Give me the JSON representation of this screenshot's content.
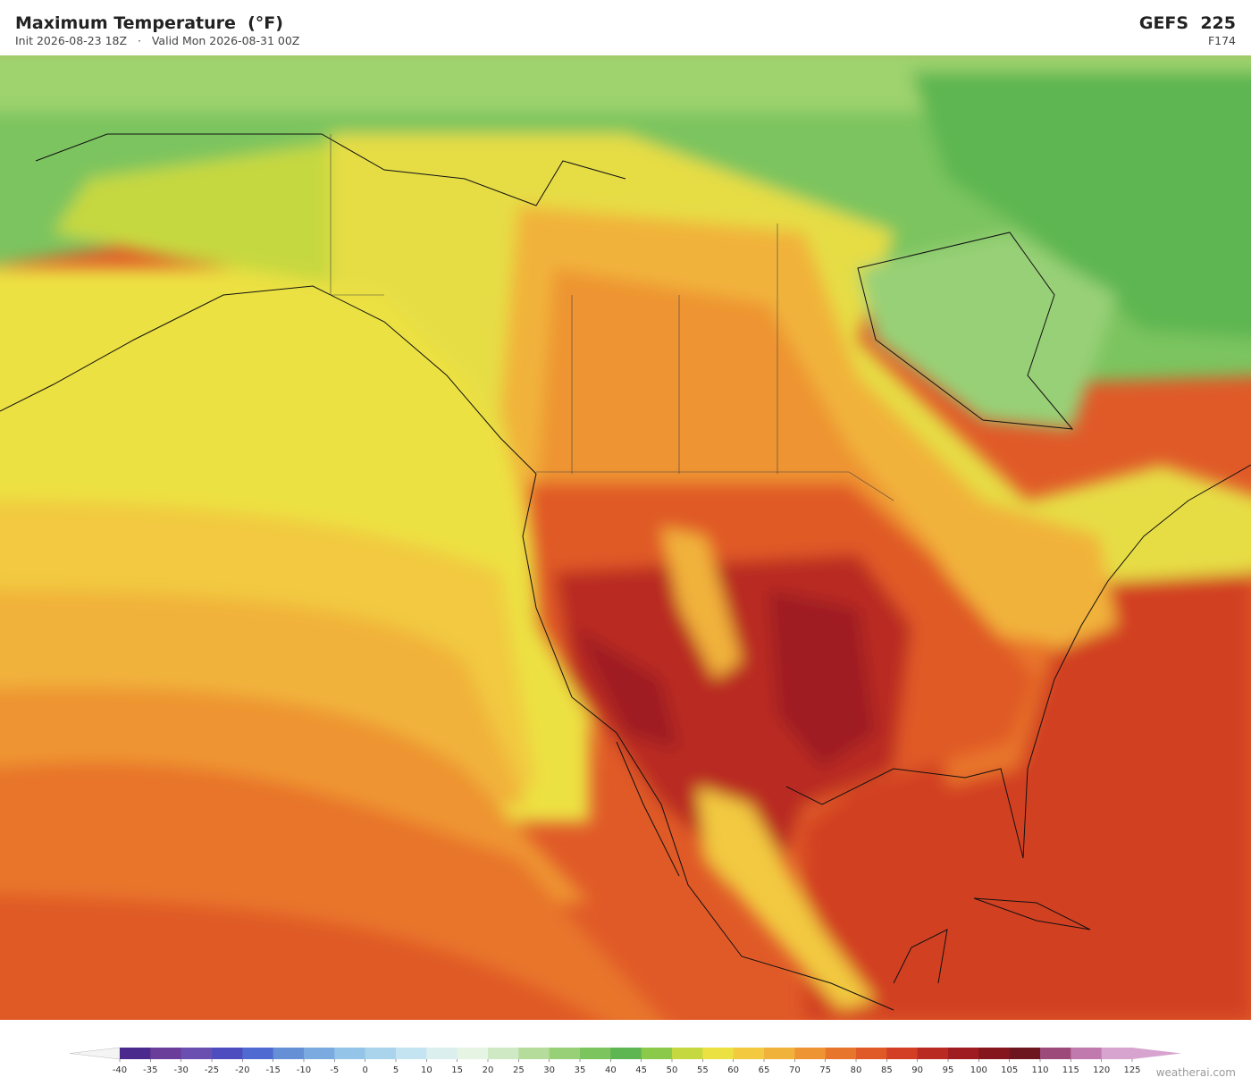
{
  "header": {
    "title": "Maximum Temperature  (°F)",
    "subtitle": "Init 2026-08-23 18Z   ·   Valid Mon 2026-08-31 00Z",
    "model": "GEFS  225",
    "forecast_hour": "F174"
  },
  "colorbar": {
    "ticks": [
      -40,
      -35,
      -30,
      -25,
      -20,
      -15,
      -10,
      -5,
      0,
      5,
      10,
      15,
      20,
      25,
      30,
      35,
      40,
      45,
      50,
      55,
      60,
      65,
      70,
      75,
      80,
      85,
      90,
      95,
      100,
      105,
      110,
      115,
      120,
      125
    ],
    "colors": [
      "#4b2a8e",
      "#6a3d9a",
      "#6a4fb0",
      "#4d4dbf",
      "#4f6ad0",
      "#6590d6",
      "#7aaadf",
      "#94c4e8",
      "#a9d4ec",
      "#c4e4f2",
      "#dcefef",
      "#e6f4e4",
      "#cfe9c4",
      "#b5dc9a",
      "#98d077",
      "#7cc45e",
      "#5db651",
      "#8bc94a",
      "#c6d840",
      "#ece142",
      "#f2c93f",
      "#f1b23b",
      "#ee9433",
      "#e8752c",
      "#e05a28",
      "#d23f24",
      "#b92a22",
      "#9f1c20",
      "#85161d",
      "#6e1620",
      "#9c4a7a",
      "#c07aad",
      "#d7a3cf"
    ],
    "under_color": "#f4f4f4",
    "over_color": "#d7a3cf"
  },
  "footer": {
    "credit": "weatherai.com"
  }
}
